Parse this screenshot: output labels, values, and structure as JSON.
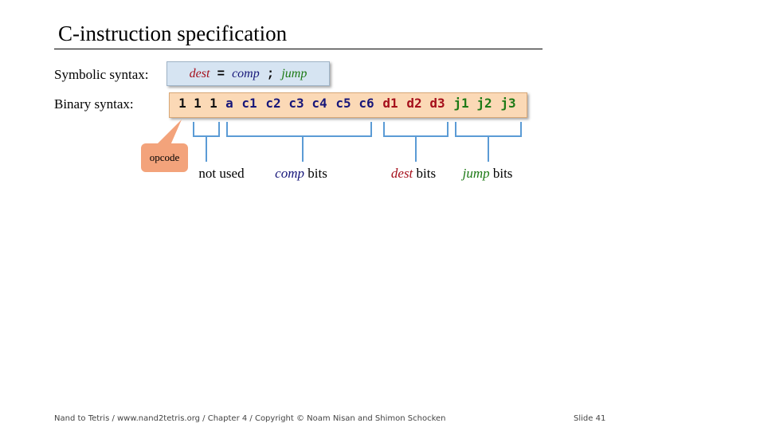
{
  "slide": {
    "title": "C-instruction specification",
    "symbolic_label": "Symbolic syntax:",
    "binary_label": "Binary syntax:",
    "symbolic": {
      "dest": "dest",
      "eq": "=",
      "comp": "comp",
      "semi": ";",
      "jump": "jump"
    },
    "bits": [
      "1",
      "1",
      "1",
      "a",
      "c1",
      "c2",
      "c3",
      "c4",
      "c5",
      "c6",
      "d1",
      "d2",
      "d3",
      "j1",
      "j2",
      "j3"
    ],
    "opcode_label": "opcode",
    "captions": {
      "not_used": "not used",
      "comp_word": "comp",
      "dest_word": "dest",
      "jump_word": "jump",
      "bits_word": "bits"
    }
  },
  "colors": {
    "dest": "#a50f1b",
    "comp": "#17177a",
    "jump": "#1d7a16",
    "bracket": "#5b9bd5",
    "symbolic_box": "#d6e4f2",
    "binary_box": "#fbd9b6",
    "opcode_box": "#f3a37b"
  },
  "footer": {
    "credit": "Nand to Tetris / www.nand2tetris.org / Chapter 4 / Copyright © Noam Nisan and Shimon Schocken",
    "slide_number": "Slide 41"
  }
}
